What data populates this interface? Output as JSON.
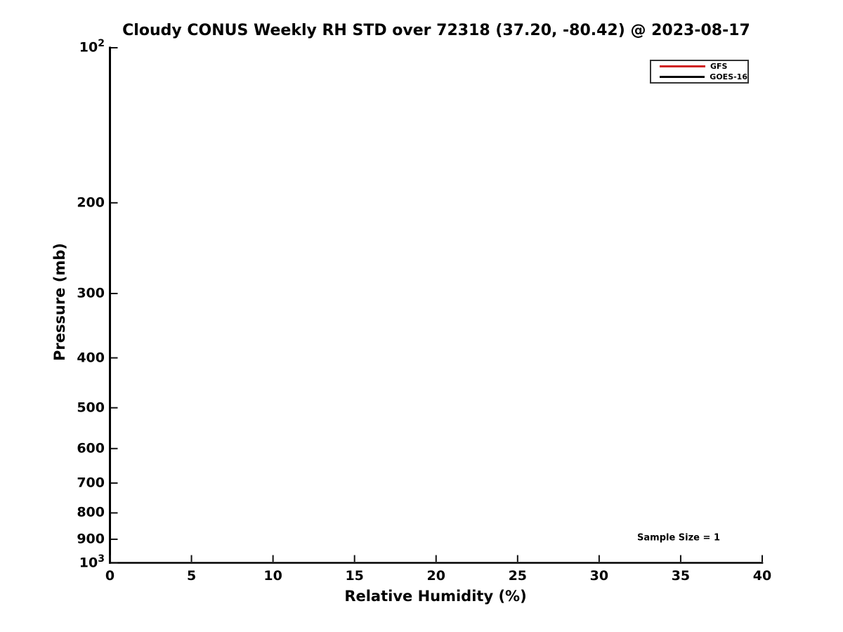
{
  "chart_data": {
    "type": "line",
    "title": "Cloudy CONUS Weekly RH STD over 72318 (37.20, -80.42) @ 2023-08-17",
    "xlabel": "Relative Humidity (%)",
    "ylabel": "Pressure (mb)",
    "grid": false,
    "x_axis": {
      "min": 0,
      "max": 40,
      "ticks": [
        {
          "value": 0,
          "label": "0"
        },
        {
          "value": 5,
          "label": "5"
        },
        {
          "value": 10,
          "label": "10"
        },
        {
          "value": 15,
          "label": "15"
        },
        {
          "value": 20,
          "label": "20"
        },
        {
          "value": 25,
          "label": "25"
        },
        {
          "value": 30,
          "label": "30"
        },
        {
          "value": 35,
          "label": "35"
        },
        {
          "value": 40,
          "label": "40"
        }
      ]
    },
    "y_axis": {
      "scale": "log",
      "min": 100,
      "max": 1000,
      "inverted": true,
      "ticks": [
        {
          "value": 100,
          "base": "10",
          "exp": "2"
        },
        {
          "value": 200,
          "label": "200"
        },
        {
          "value": 300,
          "label": "300"
        },
        {
          "value": 400,
          "label": "400"
        },
        {
          "value": 500,
          "label": "500"
        },
        {
          "value": 600,
          "label": "600"
        },
        {
          "value": 700,
          "label": "700"
        },
        {
          "value": 800,
          "label": "800"
        },
        {
          "value": 900,
          "label": "900"
        },
        {
          "value": 1000,
          "base": "10",
          "exp": "3"
        }
      ]
    },
    "series": [
      {
        "name": "GFS",
        "color": "#d01f1f",
        "points": []
      },
      {
        "name": "GOES-16",
        "color": "#000000",
        "points": []
      }
    ],
    "legend_position": "upper-right",
    "annotation": {
      "text": "Sample Size = 1",
      "x": 34.9,
      "y": 895
    },
    "axis_color": "#000000",
    "tick_color": "#111111"
  }
}
